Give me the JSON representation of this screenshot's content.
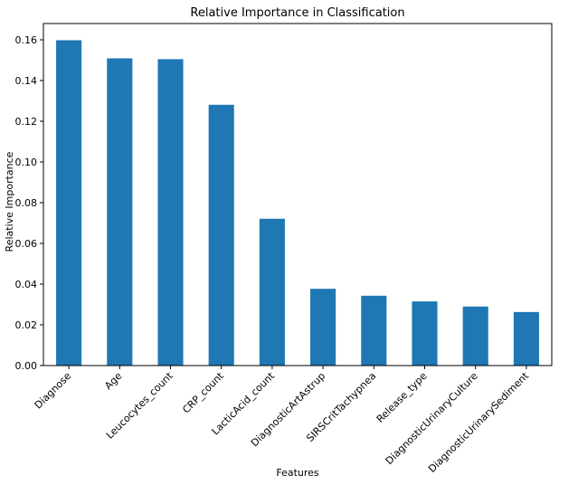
{
  "chart_data": {
    "type": "bar",
    "title": "Relative Importance in Classification",
    "xlabel": "Features",
    "ylabel": "Relative Importance",
    "categories": [
      "Diagnose",
      "Age",
      "Leucocytes_count",
      "CRP_count",
      "LacticAcid_count",
      "DiagnosticArtAstrup",
      "SIRSCritTachypnea",
      "Release_type",
      "DiagnosticUrinaryCulture",
      "DiagnosticUrinarySediment"
    ],
    "values": [
      0.1598,
      0.1509,
      0.1505,
      0.1281,
      0.0721,
      0.0377,
      0.0343,
      0.0315,
      0.029,
      0.0263
    ],
    "ylim": [
      0,
      0.168
    ],
    "yticks": [
      0.0,
      0.02,
      0.04,
      0.06,
      0.08,
      0.1,
      0.12,
      0.14,
      0.16
    ],
    "ytick_labels": [
      "0.00",
      "0.02",
      "0.04",
      "0.06",
      "0.08",
      "0.10",
      "0.12",
      "0.14",
      "0.16"
    ],
    "grid": false,
    "bar_color": "#1f77b4"
  }
}
